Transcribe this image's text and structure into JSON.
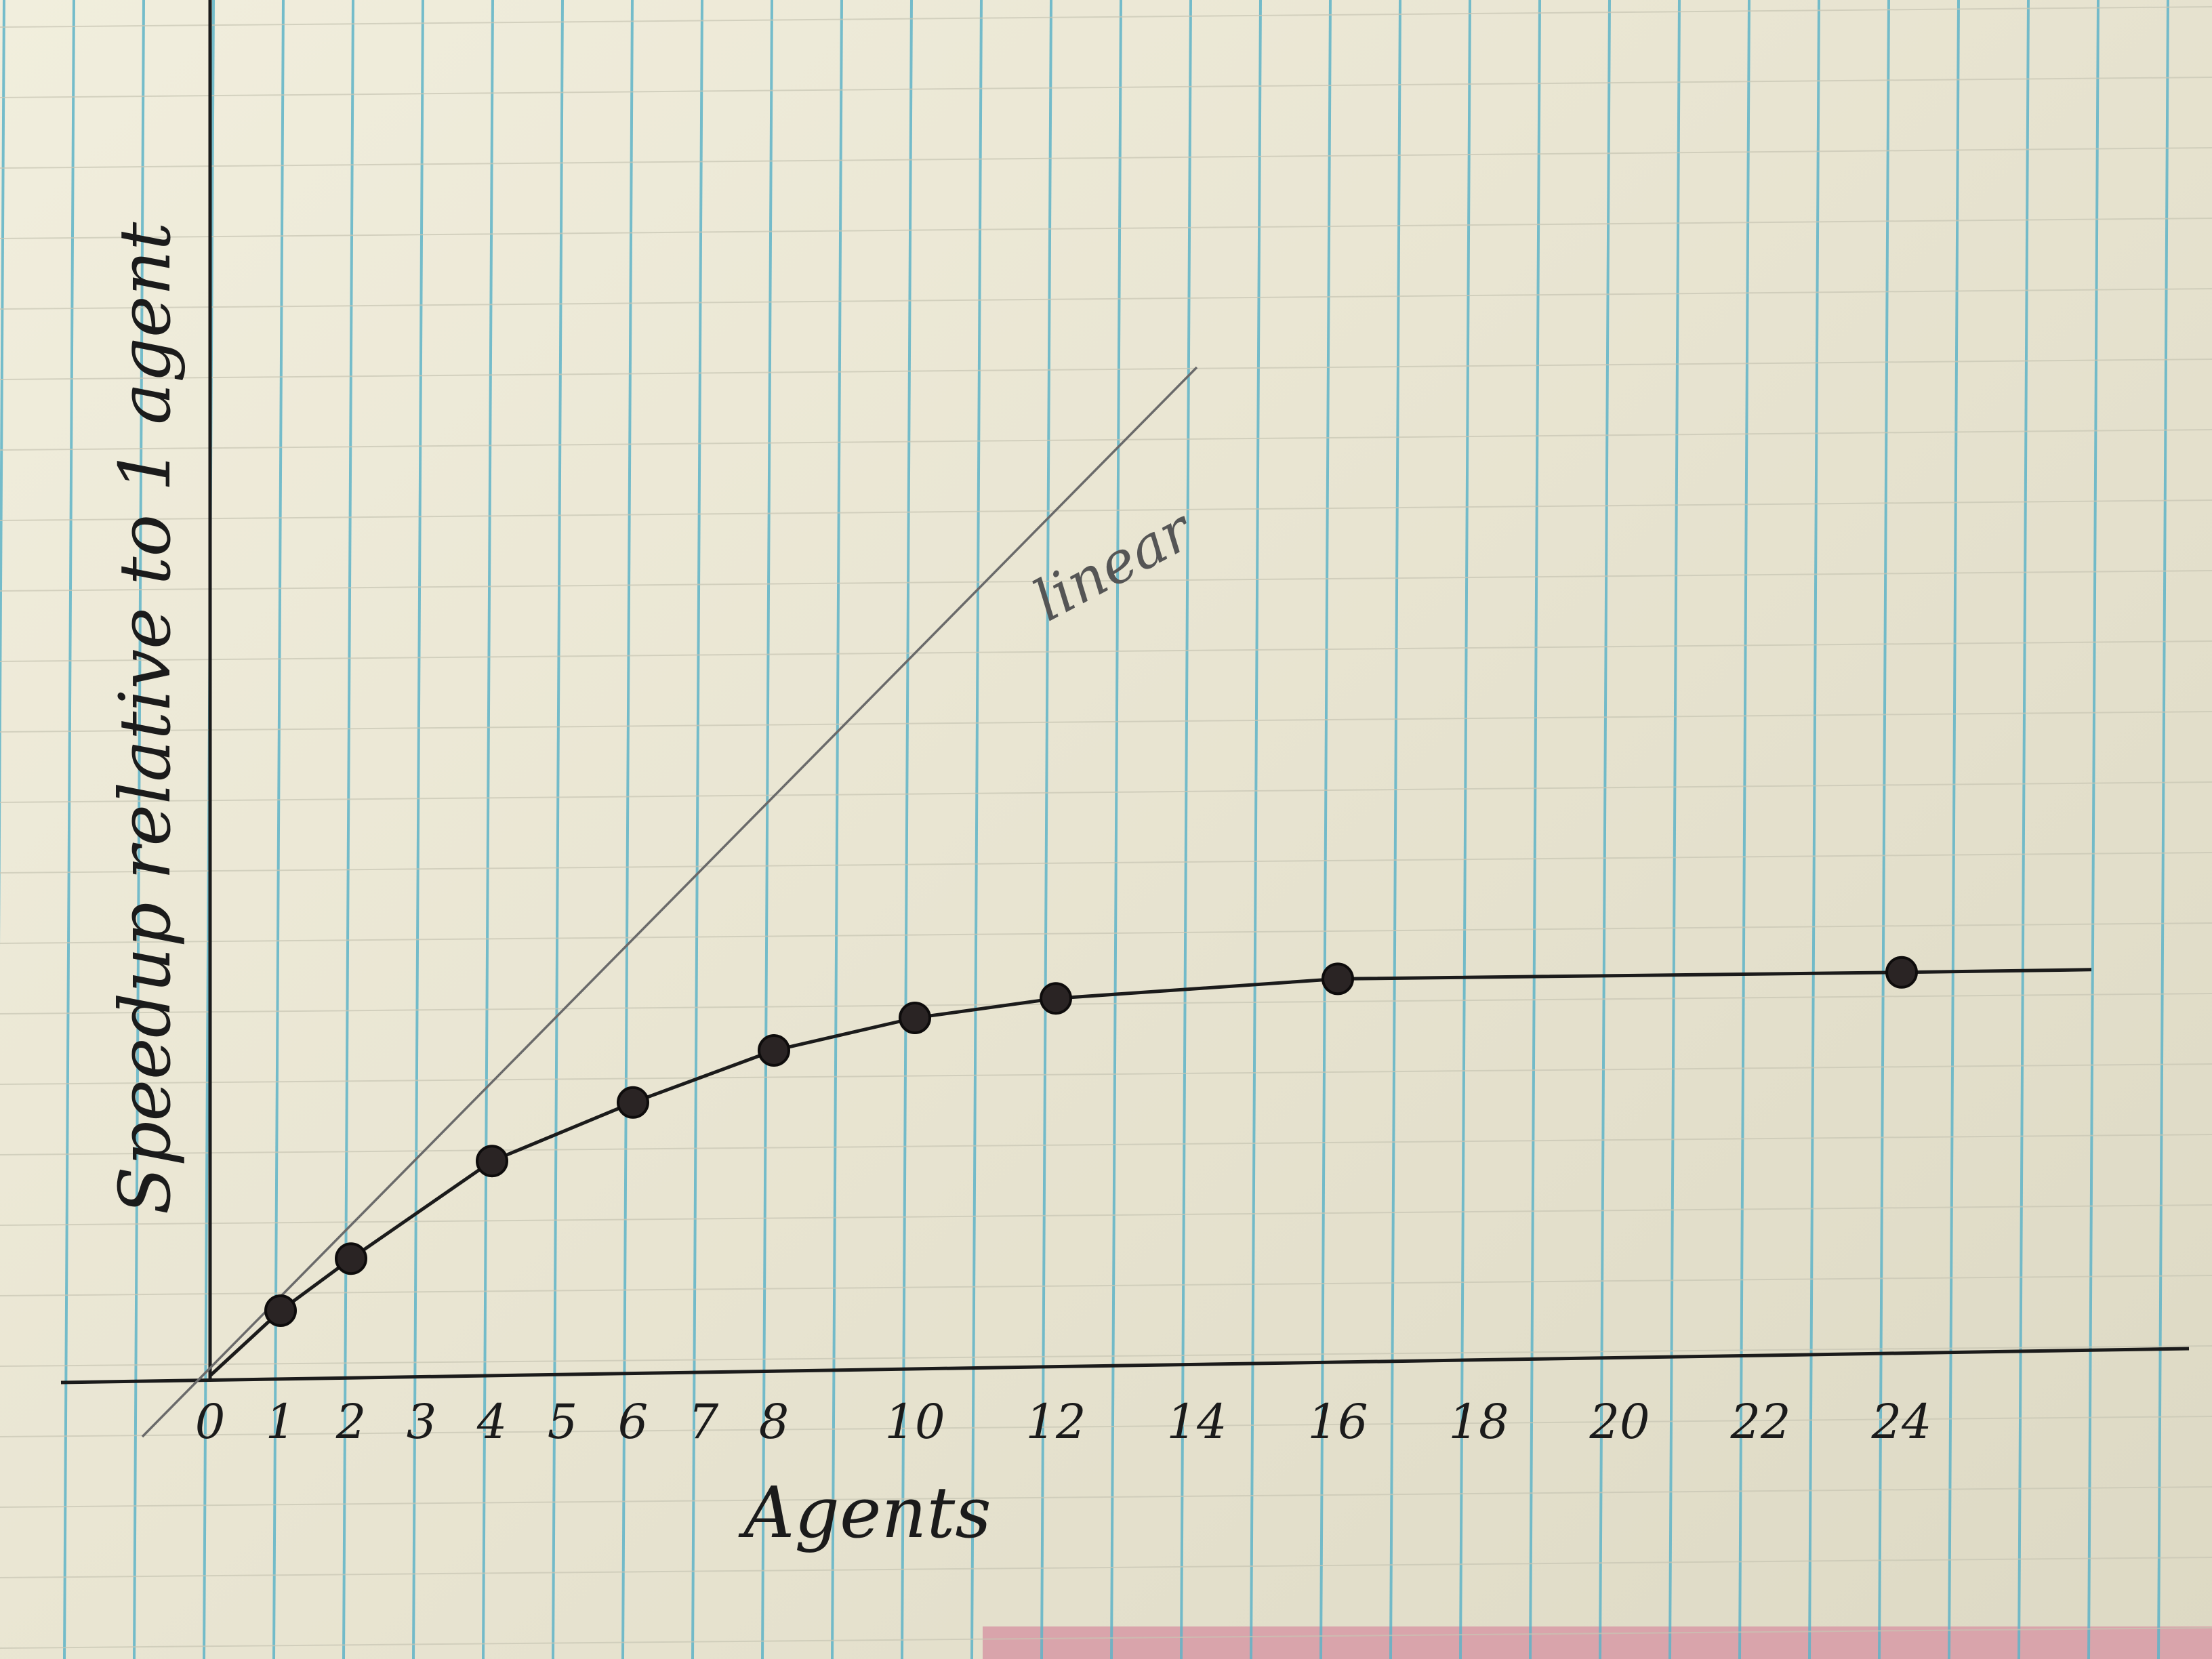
{
  "colors": {
    "paper": "#ece8d6",
    "vertical_rule": "#5fb4c8",
    "horizontal_rule": "#c8c6b4",
    "ink": "#1b1b1b",
    "pencil": "#6a6a6a"
  },
  "chart_data": {
    "type": "line",
    "xlabel": "Agents",
    "ylabel": "Speedup relative to 1 agent",
    "x_ticks": [
      "0",
      "1",
      "2",
      "3",
      "4",
      "5",
      "6",
      "7",
      "8",
      "10",
      "12",
      "14",
      "16",
      "18",
      "20",
      "22",
      "24"
    ],
    "series": [
      {
        "values": [
          {
            "x": 0,
            "y": 0
          },
          {
            "x": 1,
            "y": 1
          },
          {
            "x": 2,
            "y": 1.8
          },
          {
            "x": 4,
            "y": 3.3
          },
          {
            "x": 6,
            "y": 4.2
          },
          {
            "x": 8,
            "y": 5
          },
          {
            "x": 10,
            "y": 5.5
          },
          {
            "x": 12,
            "y": 5.8
          },
          {
            "x": 16,
            "y": 6.1
          },
          {
            "x": 24,
            "y": 6.2
          }
        ]
      },
      {
        "name": "linear",
        "values": [
          {
            "x": 0,
            "y": 0
          },
          {
            "x": 14,
            "y": 15.5
          }
        ]
      }
    ],
    "grid": "notebook ruled paper",
    "legend": "none"
  }
}
